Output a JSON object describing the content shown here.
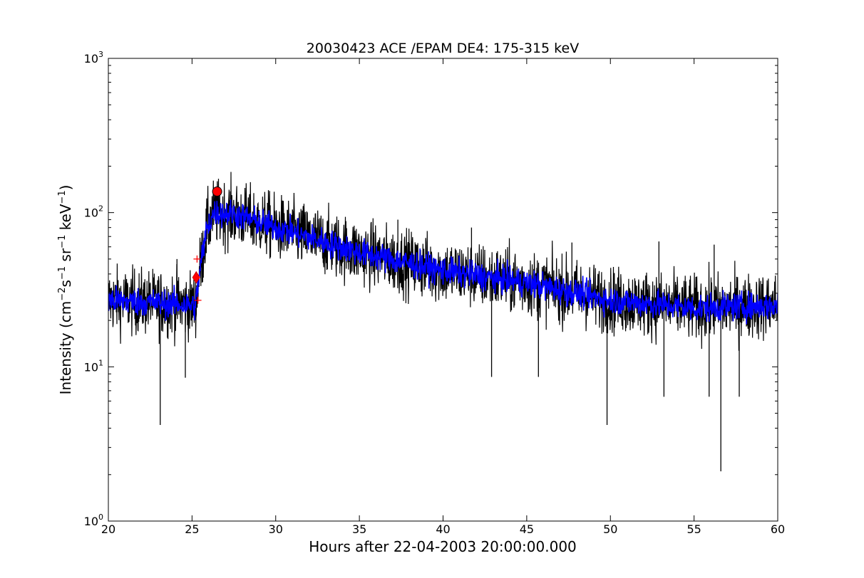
{
  "chart_data": {
    "type": "line",
    "title": "20030423 ACE /EPAM DE4: 175-315 keV",
    "xlabel": "Hours after 22-04-2003 20:00:00.000",
    "ylabel": {
      "prefix": "Intensity (cm",
      "sup1": "−2",
      "part2": "s",
      "sup2": "−1",
      "part3": " sr",
      "sup3": "−1",
      "part4": " keV",
      "sup4": "−1",
      "suffix": ")"
    },
    "xlim": [
      20,
      60
    ],
    "ylim": [
      1,
      1000
    ],
    "yscale": "log",
    "grid": false,
    "x_ticks": [
      20,
      25,
      30,
      35,
      40,
      45,
      50,
      55,
      60
    ],
    "x_tick_labels": [
      "20",
      "25",
      "30",
      "35",
      "40",
      "45",
      "50",
      "55",
      "60"
    ],
    "y_ticks": [
      1,
      10,
      100,
      1000
    ],
    "y_tick_labels": [
      {
        "base": "10",
        "exp": "0"
      },
      {
        "base": "10",
        "exp": "1"
      },
      {
        "base": "10",
        "exp": "2"
      },
      {
        "base": "10",
        "exp": "3"
      }
    ],
    "series": [
      {
        "role": "raw intensity (noisy)",
        "color": "#000000",
        "profile": [
          [
            20,
            27
          ],
          [
            23,
            26
          ],
          [
            25.2,
            25
          ],
          [
            25.5,
            45
          ],
          [
            25.9,
            80
          ],
          [
            26.3,
            100
          ],
          [
            27.5,
            98
          ],
          [
            30,
            80
          ],
          [
            35,
            55
          ],
          [
            40,
            42
          ],
          [
            45,
            35
          ],
          [
            50,
            27
          ],
          [
            55,
            24
          ],
          [
            60,
            25
          ]
        ],
        "spikes_down": [
          [
            23.1,
            4.2
          ],
          [
            24.6,
            8.5
          ],
          [
            42.9,
            8.6
          ],
          [
            45.7,
            8.6
          ],
          [
            49.8,
            4.2
          ],
          [
            53.2,
            6.4
          ],
          [
            55.9,
            6.4
          ],
          [
            56.6,
            2.1
          ],
          [
            57.7,
            6.4
          ]
        ],
        "spikes_up": [
          [
            24.1,
            50
          ],
          [
            26.5,
            140
          ],
          [
            37.3,
            90
          ],
          [
            41.7,
            80
          ],
          [
            47.7,
            64
          ],
          [
            52.9,
            65
          ],
          [
            56.2,
            62
          ]
        ]
      },
      {
        "role": "smoothed intensity",
        "color": "#0000ff",
        "profile": [
          [
            20,
            27
          ],
          [
            23,
            26
          ],
          [
            25.2,
            25
          ],
          [
            25.5,
            45
          ],
          [
            25.9,
            80
          ],
          [
            26.3,
            100
          ],
          [
            27.5,
            98
          ],
          [
            30,
            80
          ],
          [
            35,
            55
          ],
          [
            40,
            42
          ],
          [
            45,
            35
          ],
          [
            50,
            27
          ],
          [
            55,
            24
          ],
          [
            60,
            25
          ]
        ]
      }
    ],
    "markers": [
      {
        "shape": "circle",
        "color": "#ff0000",
        "x": 26.5,
        "y": 137
      },
      {
        "shape": "diamond",
        "color": "#ff0000",
        "x": 25.25,
        "y": 38
      },
      {
        "shape": "plus",
        "color": "#ff0000",
        "x": 25.3,
        "y": 50
      },
      {
        "shape": "plus",
        "color": "#ff0000",
        "x": 25.35,
        "y": 27
      }
    ]
  }
}
